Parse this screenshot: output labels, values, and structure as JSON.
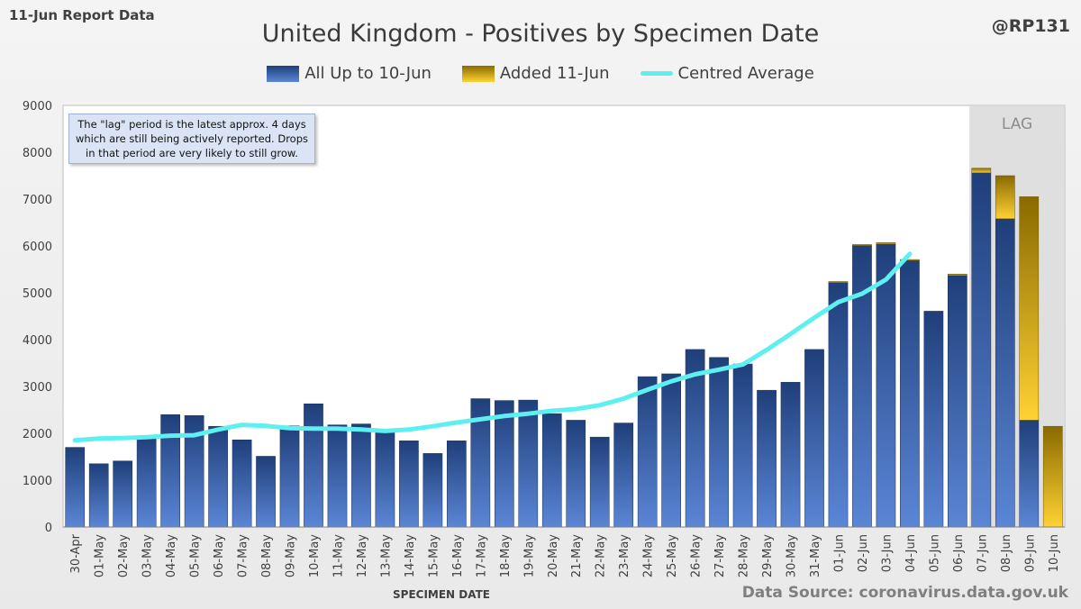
{
  "header": {
    "report_label": "11-Jun Report Data",
    "handle": "@RP131",
    "source": "Data Source: coronavirus.data.gov.uk"
  },
  "note": "The \"lag\" period is the latest approx. 4 days which are still being actively reported. Drops in that period are very likely to still grow.",
  "colors": {
    "base_dark": "#1f3f7a",
    "base_light": "#5b86d6",
    "added_dark": "#8a6a00",
    "added_light": "#ffd233",
    "average": "#5ef0f0",
    "lag_band": "#d9d9d9"
  },
  "chart_data": {
    "type": "bar",
    "title": "United Kingdom - Positives by Specimen Date",
    "xlabel": "SPECIMEN DATE",
    "ylabel": "",
    "ylim": [
      0,
      9000
    ],
    "yticks": [
      0,
      1000,
      2000,
      3000,
      4000,
      5000,
      6000,
      7000,
      8000,
      9000
    ],
    "lag_label": "LAG",
    "lag_start_category": "07-Jun",
    "categories": [
      "30-Apr",
      "01-May",
      "02-May",
      "03-May",
      "04-May",
      "05-May",
      "06-May",
      "07-May",
      "08-May",
      "09-May",
      "10-May",
      "11-May",
      "12-May",
      "13-May",
      "14-May",
      "15-May",
      "16-May",
      "17-May",
      "18-May",
      "19-May",
      "20-May",
      "21-May",
      "22-May",
      "23-May",
      "24-May",
      "25-May",
      "26-May",
      "27-May",
      "28-May",
      "29-May",
      "30-May",
      "31-May",
      "01-Jun",
      "02-Jun",
      "03-Jun",
      "04-Jun",
      "05-Jun",
      "06-Jun",
      "07-Jun",
      "08-Jun",
      "09-Jun",
      "10-Jun"
    ],
    "series": [
      {
        "name": "All Up to 10-Jun",
        "values": [
          1700,
          1350,
          1410,
          1940,
          2400,
          2380,
          2150,
          1860,
          1510,
          2160,
          2630,
          2180,
          2200,
          2060,
          1840,
          1570,
          1840,
          2740,
          2700,
          2710,
          2420,
          2280,
          1920,
          2220,
          3210,
          3270,
          3790,
          3620,
          3480,
          2920,
          3090,
          3790,
          5220,
          6010,
          6040,
          5690,
          4600,
          5370,
          7560,
          6580,
          2280,
          0
        ]
      },
      {
        "name": "Added 11-Jun",
        "values": [
          0,
          0,
          0,
          0,
          0,
          0,
          0,
          0,
          0,
          0,
          0,
          0,
          0,
          0,
          0,
          0,
          0,
          0,
          0,
          0,
          0,
          0,
          0,
          0,
          0,
          0,
          0,
          0,
          0,
          0,
          0,
          0,
          20,
          20,
          30,
          20,
          10,
          30,
          100,
          920,
          4770,
          2150
        ]
      },
      {
        "name": "Centred Average",
        "values": [
          1850,
          1890,
          1900,
          1920,
          1950,
          1960,
          2080,
          2180,
          2160,
          2110,
          2100,
          2100,
          2080,
          2050,
          2080,
          2150,
          2230,
          2300,
          2370,
          2420,
          2480,
          2520,
          2600,
          2740,
          2930,
          3110,
          3260,
          3360,
          3470,
          3780,
          4120,
          4470,
          4800,
          4980,
          5280,
          5830,
          null,
          null,
          null,
          null,
          null,
          null
        ]
      }
    ]
  }
}
